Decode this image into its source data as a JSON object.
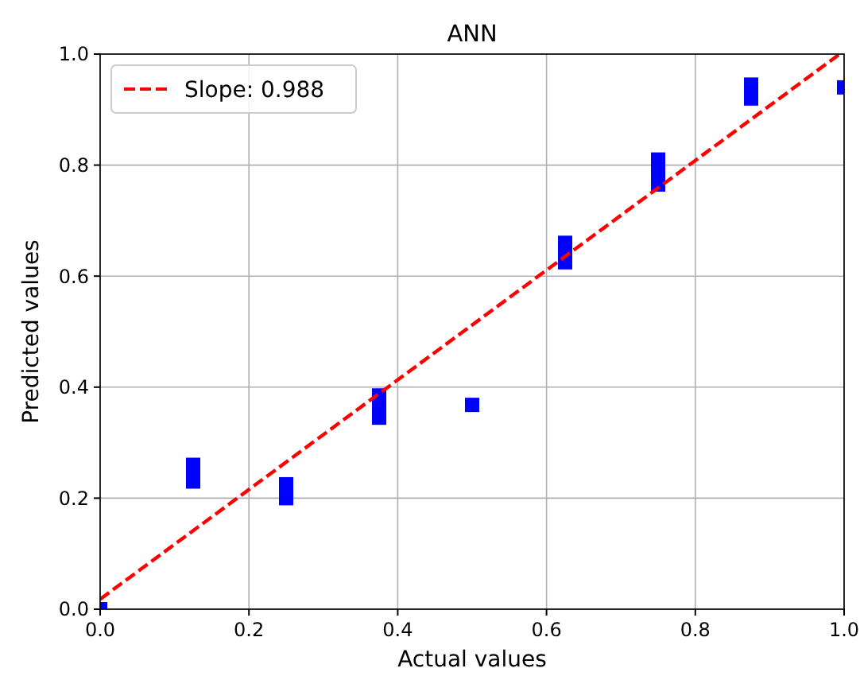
{
  "chart_data": {
    "type": "scatter",
    "title": "ANN",
    "xlabel": "Actual values",
    "ylabel": "Predicted values",
    "xlim": [
      0,
      1
    ],
    "ylim": [
      0,
      1
    ],
    "xticks": [
      {
        "value": 0,
        "label": "0.0"
      },
      {
        "value": 0.2,
        "label": "0.2"
      },
      {
        "value": 0.4,
        "label": "0.4"
      },
      {
        "value": 0.6,
        "label": "0.6"
      },
      {
        "value": 0.8,
        "label": "0.8"
      },
      {
        "value": 1,
        "label": "1.0"
      }
    ],
    "yticks": [
      {
        "value": 0,
        "label": "0.0"
      },
      {
        "value": 0.2,
        "label": "0.2"
      },
      {
        "value": 0.4,
        "label": "0.4"
      },
      {
        "value": 0.6,
        "label": "0.6"
      },
      {
        "value": 0.8,
        "label": "0.8"
      },
      {
        "value": 1,
        "label": "1.0"
      }
    ],
    "grid": true,
    "legend": "top left",
    "series": [
      {
        "color": "#0000ff",
        "marker": "square",
        "x": [
          0,
          0.125,
          0.125,
          0.125,
          0.25,
          0.25,
          0.375,
          0.375,
          0.375,
          0.5,
          0.625,
          0.625,
          0.625,
          0.75,
          0.75,
          0.75,
          0.875,
          0.875,
          1
        ],
        "values": [
          0,
          0.23,
          0.245,
          0.26,
          0.2,
          0.225,
          0.345,
          0.36,
          0.385,
          0.368,
          0.625,
          0.64,
          0.66,
          0.765,
          0.79,
          0.81,
          0.92,
          0.945,
          0.94
        ]
      },
      {
        "type": "line",
        "name": "Slope: 0.988",
        "color": "#ff0000",
        "line_style": "dashed",
        "marker": "none",
        "x": [
          0,
          0.994
        ],
        "values": [
          0.018,
          1
        ]
      }
    ]
  }
}
